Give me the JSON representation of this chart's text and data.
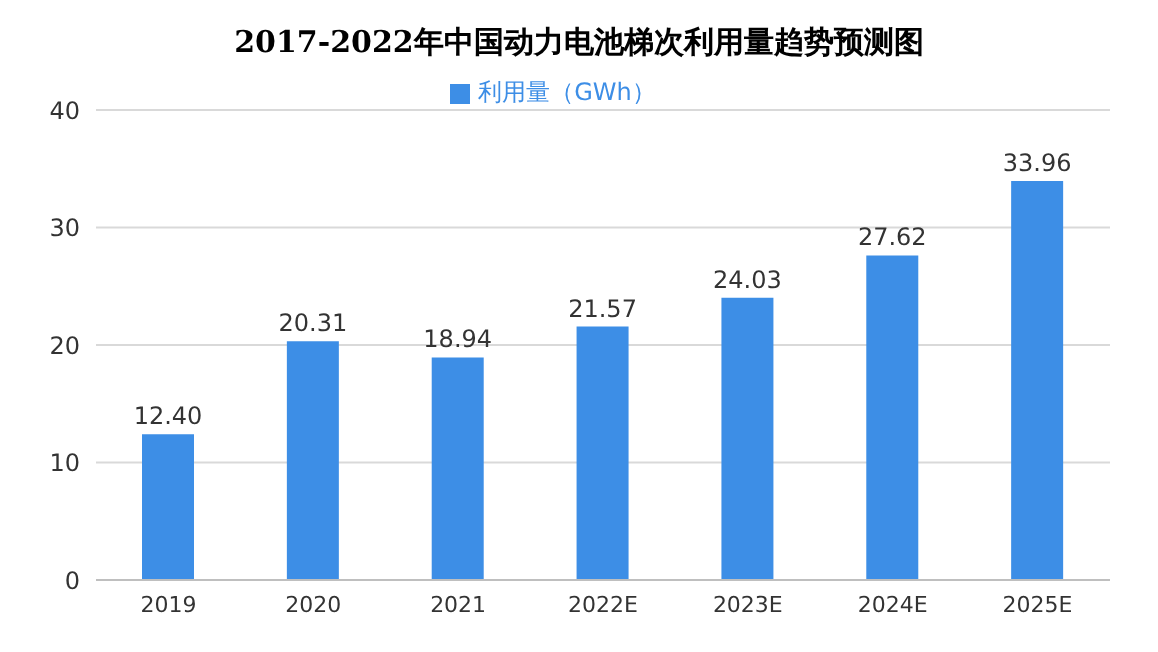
{
  "chart_data": {
    "type": "bar",
    "title": "2017-2022年中国动力电池梯次利用量趋势预测图",
    "categories": [
      "2019",
      "2020",
      "2021",
      "2022E",
      "2023E",
      "2024E",
      "2025E"
    ],
    "series": [
      {
        "name": "利用量（GWh）",
        "color": "#3d8ee6",
        "values": [
          12.4,
          20.31,
          18.94,
          21.57,
          24.03,
          27.62,
          33.96
        ],
        "value_labels": [
          "12.40",
          "20.31",
          "18.94",
          "21.57",
          "24.03",
          "27.62",
          "33.96"
        ]
      }
    ],
    "ylim": [
      0,
      40
    ],
    "yticks": [
      0,
      10,
      20,
      30,
      40
    ],
    "grid": "y",
    "legend": "top"
  }
}
